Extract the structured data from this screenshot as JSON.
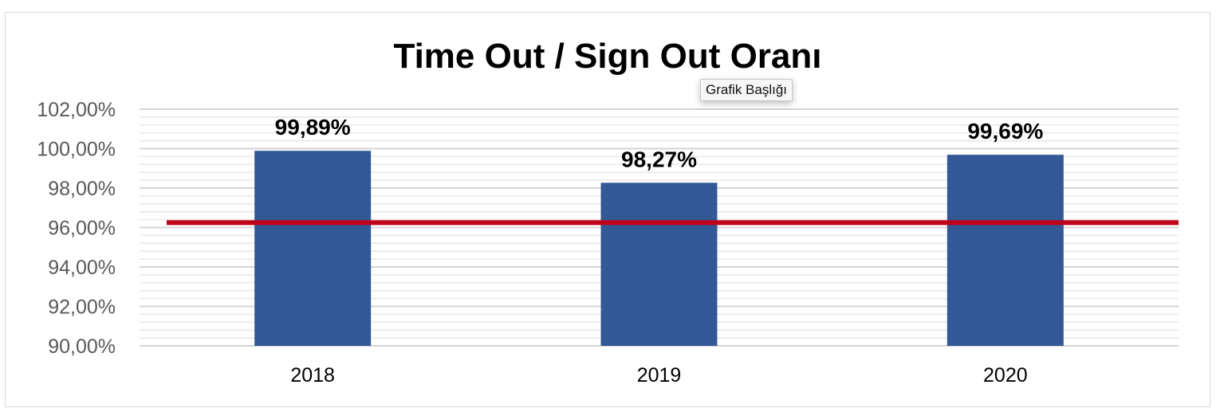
{
  "chart_data": {
    "type": "bar",
    "title": "Time Out / Sign Out Oranı",
    "categories": [
      "2018",
      "2019",
      "2020"
    ],
    "values": [
      99.89,
      98.27,
      99.69
    ],
    "data_labels": [
      "99,89%",
      "98,27%",
      "99,69%"
    ],
    "target_line": {
      "value": 96.25,
      "color": "#c00018"
    },
    "bar_color": "#325896",
    "ylim": [
      90,
      102
    ],
    "y_major_step": 2,
    "y_minor_step": 0.4,
    "ytick_labels": [
      "90,00%",
      "92,00%",
      "94,00%",
      "96,00%",
      "98,00%",
      "100,00%",
      "102,00%"
    ],
    "grid": true,
    "xlabel": "",
    "ylabel": ""
  },
  "tooltip": "Grafik Başlığı"
}
